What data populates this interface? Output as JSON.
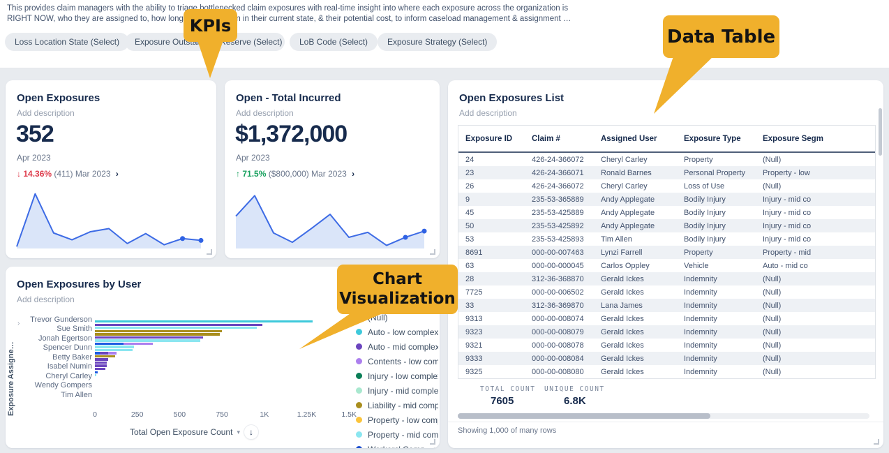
{
  "header": {
    "description_line1": "This provides claim managers with the ability to triage bottlenecked claim exposures with real-time insight into where each exposure across the organization is",
    "description_line2": "RIGHT NOW, who they are assigned to, how long they have been in their current state, & their potential cost, to inform caseload management & assignment …",
    "filter_chips": [
      "Loss Location State (Select)",
      "Exposure Outstanding Reserve (Select)",
      "LoB Code (Select)",
      "Exposure Strategy (Select)"
    ]
  },
  "callouts": {
    "kpis": "KPIs",
    "data_table": "Data Table",
    "chart_line1": "Chart",
    "chart_line2": "Visualization",
    "color": "#f0b02c"
  },
  "kpis": [
    {
      "title": "Open Exposures",
      "subtitle": "Add description",
      "value": "352",
      "period": "Apr 2023",
      "delta": {
        "direction": "down",
        "arrow": "↓",
        "percent": "14.36%",
        "previous": "(411) Mar 2023",
        "chevron": "›"
      },
      "sparkline": [
        3,
        88,
        25,
        14,
        27,
        32,
        8,
        24,
        6,
        16,
        13
      ]
    },
    {
      "title": "Open - Total Incurred",
      "subtitle": "Add description",
      "value": "$1,372,000",
      "period": "Apr 2023",
      "delta": {
        "direction": "up",
        "arrow": "↑",
        "percent": "71.5%",
        "previous": "($800,000) Mar 2023",
        "chevron": "›"
      },
      "sparkline": [
        52,
        85,
        25,
        10,
        32,
        55,
        18,
        26,
        5,
        18,
        28
      ]
    }
  ],
  "spark_style": {
    "line_color": "#3d6be5",
    "fill_color": "#dae5f9",
    "dot_color": "#2f62e4"
  },
  "table": {
    "title": "Open Exposures List",
    "subtitle": "Add description",
    "columns": [
      "Exposure ID",
      "Claim #",
      "Assigned User",
      "Exposure Type",
      "Exposure Segm"
    ],
    "rows": [
      [
        "24",
        "426-24-366072",
        "Cheryl Carley",
        "Property",
        "(Null)"
      ],
      [
        "23",
        "426-24-366071",
        "Ronald Barnes",
        "Personal Property",
        "Property - low"
      ],
      [
        "26",
        "426-24-366072",
        "Cheryl Carley",
        "Loss of Use",
        "(Null)"
      ],
      [
        "9",
        "235-53-365889",
        "Andy Applegate",
        "Bodily Injury",
        "Injury - mid co"
      ],
      [
        "45",
        "235-53-425889",
        "Andy Applegate",
        "Bodily Injury",
        "Injury - mid co"
      ],
      [
        "50",
        "235-53-425892",
        "Andy Applegate",
        "Bodily Injury",
        "Injury - mid co"
      ],
      [
        "53",
        "235-53-425893",
        "Tim Allen",
        "Bodily Injury",
        "Injury - mid co"
      ],
      [
        "8691",
        "000-00-007463",
        "Lynzi Farrell",
        "Property",
        "Property - mid"
      ],
      [
        "63",
        "000-00-000045",
        "Carlos Oppley",
        "Vehicle",
        "Auto - mid co"
      ],
      [
        "28",
        "312-36-368870",
        "Gerald Ickes",
        "Indemnity",
        "(Null)"
      ],
      [
        "7725",
        "000-00-006502",
        "Gerald Ickes",
        "Indemnity",
        "(Null)"
      ],
      [
        "33",
        "312-36-369870",
        "Lana James",
        "Indemnity",
        "(Null)"
      ],
      [
        "9313",
        "000-00-008074",
        "Gerald Ickes",
        "Indemnity",
        "(Null)"
      ],
      [
        "9323",
        "000-00-008079",
        "Gerald Ickes",
        "Indemnity",
        "(Null)"
      ],
      [
        "9321",
        "000-00-008078",
        "Gerald Ickes",
        "Indemnity",
        "(Null)"
      ],
      [
        "9333",
        "000-00-008084",
        "Gerald Ickes",
        "Indemnity",
        "(Null)"
      ],
      [
        "9325",
        "000-00-008080",
        "Gerald Ickes",
        "Indemnity",
        "(Null)"
      ]
    ],
    "summary": {
      "total_label": "TOTAL COUNT",
      "total_value": "7605",
      "unique_label": "UNIQUE COUNT",
      "unique_value": "6.8K"
    },
    "footer": "Showing 1,000 of many rows"
  },
  "chart": {
    "title": "Open Exposures by User",
    "subtitle": "Add description",
    "y_axis_label": "Exposure Assigne…",
    "y_axis_arrow": "›",
    "users": [
      "Trevor Gunderson",
      "Sue Smith",
      "Jonah Egertson",
      "Spencer Dunn",
      "Betty Baker",
      "Isabel Numin",
      "Cheryl Carley",
      "Wendy Gompers",
      "Tim Allen"
    ],
    "x_ticks": [
      "0",
      "250",
      "500",
      "750",
      "1K",
      "1.25K",
      "1.5K"
    ],
    "x_axis_title": "Total Open Exposure Count",
    "x_axis_caret": "▾",
    "sort_icon": "↓",
    "axis_max": 1500,
    "bars": [
      {
        "segments": [
          {
            "color": "#3ec9db",
            "value": 1285
          }
        ]
      },
      {
        "segments": [
          {
            "color": "#6b45be",
            "value": 990
          }
        ]
      },
      {
        "segments": [
          {
            "color": "#8be6f0",
            "value": 955
          }
        ]
      },
      {
        "segments": [
          {
            "color": "#a98e1e",
            "value": 750
          }
        ]
      },
      {
        "segments": [
          {
            "color": "#a98e1e",
            "value": 738
          }
        ]
      },
      {
        "segments": [
          {
            "color": "#6b45be",
            "value": 640
          }
        ]
      },
      {
        "segments": [
          {
            "color": "#8be6f0",
            "value": 620
          }
        ]
      },
      {
        "segments": [
          {
            "color": "#1e5be2",
            "value": 168
          },
          {
            "color": "#ac7fee",
            "value": 172
          }
        ]
      },
      {
        "segments": [
          {
            "color": "#8be6f0",
            "value": 230
          }
        ]
      },
      {
        "segments": [
          {
            "color": "#8be6f0",
            "value": 222
          }
        ]
      },
      {
        "segments": [
          {
            "color": "#1e5be2",
            "value": 30
          },
          {
            "color": "#6b45be",
            "value": 48
          },
          {
            "color": "#ac7fee",
            "value": 48
          }
        ]
      },
      {
        "segments": [
          {
            "color": "#a98e1e",
            "value": 118
          }
        ]
      },
      {
        "segments": [
          {
            "color": "#6b45be",
            "value": 78
          }
        ]
      },
      {
        "segments": [
          {
            "color": "#6b45be",
            "value": 70
          }
        ]
      },
      {
        "segments": [
          {
            "color": "#6b45be",
            "value": 70
          }
        ]
      },
      {
        "segments": [
          {
            "color": "#6b45be",
            "value": 62
          }
        ]
      },
      {
        "segments": [
          {
            "color": "#1e5be2",
            "value": 16
          }
        ]
      },
      {
        "segments": [
          {
            "color": "#8be6f0",
            "value": 10
          }
        ]
      }
    ],
    "legend": [
      {
        "label": "(Null)",
        "color": "#8993a4"
      },
      {
        "label": "Auto - low complexi",
        "color": "#3ec9db"
      },
      {
        "label": "Auto - mid complex",
        "color": "#6b45be"
      },
      {
        "label": "Contents - low comp",
        "color": "#ac7fee"
      },
      {
        "label": "Injury - low complex",
        "color": "#0b7e57"
      },
      {
        "label": "Injury - mid comple",
        "color": "#a9e8cf"
      },
      {
        "label": "Liability - mid comp",
        "color": "#a98e1e"
      },
      {
        "label": "Property - low comp",
        "color": "#fbc43b"
      },
      {
        "label": "Property - mid comp",
        "color": "#8be6f0"
      },
      {
        "label": "Workers' Comp - em",
        "color": "#1e4fd0"
      }
    ]
  }
}
